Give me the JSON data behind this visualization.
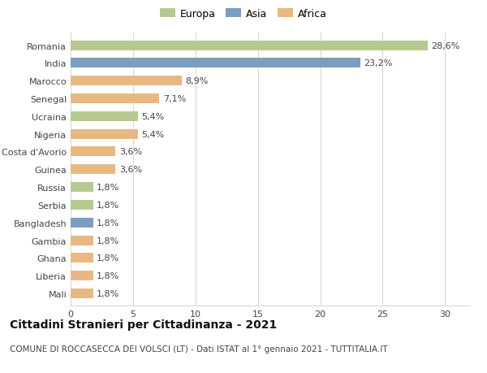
{
  "countries": [
    "Romania",
    "India",
    "Marocco",
    "Senegal",
    "Ucraina",
    "Nigeria",
    "Costa d'Avorio",
    "Guinea",
    "Russia",
    "Serbia",
    "Bangladesh",
    "Gambia",
    "Ghana",
    "Liberia",
    "Mali"
  ],
  "values": [
    28.6,
    23.2,
    8.9,
    7.1,
    5.4,
    5.4,
    3.6,
    3.6,
    1.8,
    1.8,
    1.8,
    1.8,
    1.8,
    1.8,
    1.8
  ],
  "labels": [
    "28,6%",
    "23,2%",
    "8,9%",
    "7,1%",
    "5,4%",
    "5,4%",
    "3,6%",
    "3,6%",
    "1,8%",
    "1,8%",
    "1,8%",
    "1,8%",
    "1,8%",
    "1,8%",
    "1,8%"
  ],
  "continent": [
    "Europa",
    "Asia",
    "Africa",
    "Africa",
    "Europa",
    "Africa",
    "Africa",
    "Africa",
    "Europa",
    "Europa",
    "Asia",
    "Africa",
    "Africa",
    "Africa",
    "Africa"
  ],
  "colors": {
    "Europa": "#b5c990",
    "Asia": "#7b9ec0",
    "Africa": "#e8b882"
  },
  "bar_height": 0.55,
  "xlim": [
    0,
    32
  ],
  "xticks": [
    0,
    5,
    10,
    15,
    20,
    25,
    30
  ],
  "title": "Cittadini Stranieri per Cittadinanza - 2021",
  "subtitle": "COMUNE DI ROCCASECCA DEI VOLSCI (LT) - Dati ISTAT al 1° gennaio 2021 - TUTTITALIA.IT",
  "title_fontsize": 10,
  "subtitle_fontsize": 7.5,
  "legend_labels": [
    "Europa",
    "Asia",
    "Africa"
  ],
  "bg_color": "#ffffff",
  "grid_color": "#d8d8d8",
  "label_fontsize": 8,
  "tick_fontsize": 8
}
